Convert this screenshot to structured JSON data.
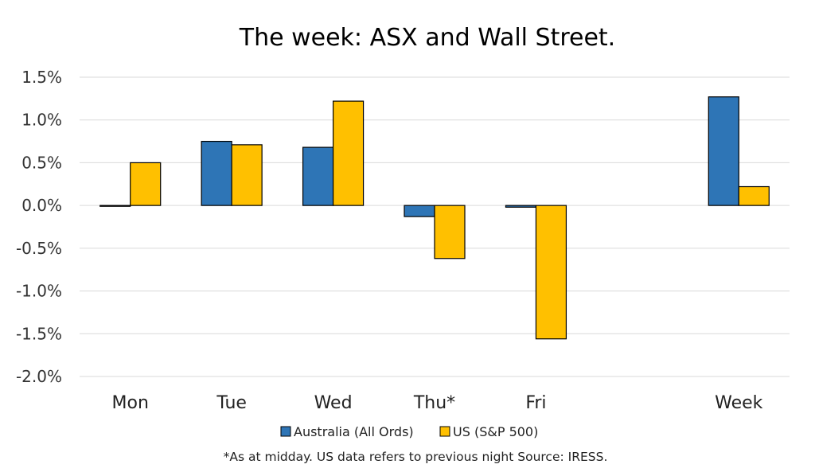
{
  "chart_data": {
    "type": "bar",
    "title": "The week:  ASX and Wall Street.",
    "categories": [
      "Mon",
      "Tue",
      "Wed",
      "Thu*",
      "Fri",
      "",
      "Week"
    ],
    "series": [
      {
        "name": "Australia (All Ords)",
        "color": "#2e75b6",
        "values": [
          -0.01,
          0.75,
          0.68,
          -0.13,
          -0.02,
          null,
          1.27
        ]
      },
      {
        "name": "US (S&P 500)",
        "color": "#ffc000",
        "values": [
          0.5,
          0.71,
          1.22,
          -0.62,
          -1.56,
          null,
          0.22
        ]
      }
    ],
    "ylim": [
      -2.0,
      1.5
    ],
    "yticks": [
      1.5,
      1.0,
      0.5,
      0.0,
      -0.5,
      -1.0,
      -1.5,
      -2.0
    ],
    "ytick_labels": [
      "1.5%",
      "1.0%",
      "0.5%",
      "0.0%",
      "-0.5%",
      "-1.0%",
      "-1.5%",
      "-2.0%"
    ],
    "grid": true,
    "legend_position": "bottom",
    "footnote": "*As at midday. US data refers to previous night  Source:  IRESS."
  }
}
